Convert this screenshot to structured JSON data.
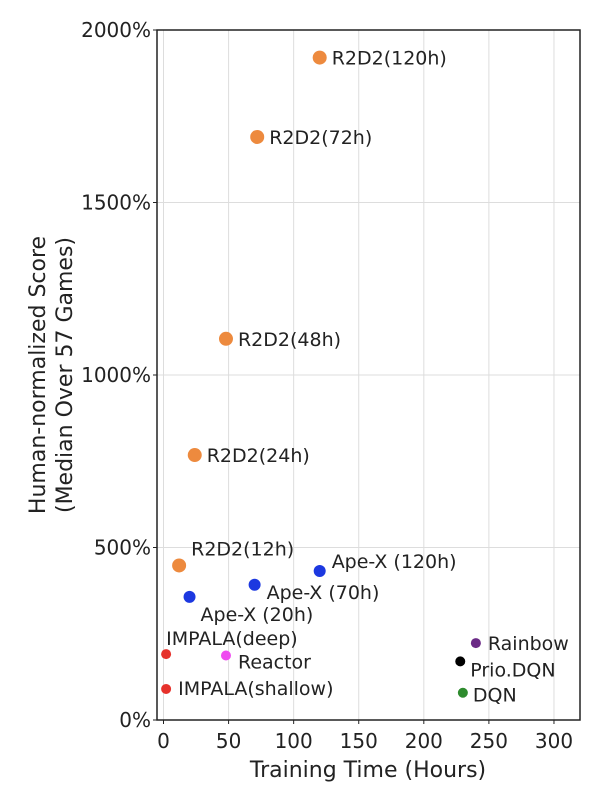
{
  "chart_data": {
    "type": "scatter",
    "xlabel": "Training Time (Hours)",
    "ylabel": "Human-normalized Score",
    "ylabel_sub": "(Median Over 57 Games)",
    "xlim": [
      -5,
      320
    ],
    "ylim": [
      0,
      2000
    ],
    "xticks": [
      0,
      50,
      100,
      150,
      200,
      250,
      300
    ],
    "yticks": [
      0,
      500,
      1000,
      1500,
      2000
    ],
    "ytick_suffix": "%",
    "grid": true,
    "points": [
      {
        "label": "R2D2(120h)",
        "x": 120,
        "y": 1920,
        "color": "#ed8a3e"
      },
      {
        "label": "R2D2(72h)",
        "x": 72,
        "y": 1690,
        "color": "#ed8a3e"
      },
      {
        "label": "R2D2(48h)",
        "x": 48,
        "y": 1105,
        "color": "#ed8a3e"
      },
      {
        "label": "R2D2(24h)",
        "x": 24,
        "y": 768,
        "color": "#ed8a3e"
      },
      {
        "label": "R2D2(12h)",
        "x": 12,
        "y": 448,
        "color": "#ed8a3e"
      },
      {
        "label": "Ape-X (120h)",
        "x": 120,
        "y": 432,
        "color": "#1c38e0"
      },
      {
        "label": "Ape-X (70h)",
        "x": 70,
        "y": 392,
        "color": "#1c38e0"
      },
      {
        "label": "Ape-X (20h)",
        "x": 20,
        "y": 357,
        "color": "#1c38e0"
      },
      {
        "label": "IMPALA(deep)",
        "x": 2,
        "y": 191,
        "color": "#e6312b"
      },
      {
        "label": "IMPALA(shallow)",
        "x": 2,
        "y": 90,
        "color": "#e6312b"
      },
      {
        "label": "Reactor",
        "x": 48,
        "y": 187,
        "color": "#ef4bf0"
      },
      {
        "label": "Rainbow",
        "x": 240,
        "y": 223,
        "color": "#6b2a86"
      },
      {
        "label": "Prio.DQN",
        "x": 228,
        "y": 170,
        "color": "#000000"
      },
      {
        "label": "DQN",
        "x": 230,
        "y": 79,
        "color": "#2e8b2e"
      }
    ]
  }
}
